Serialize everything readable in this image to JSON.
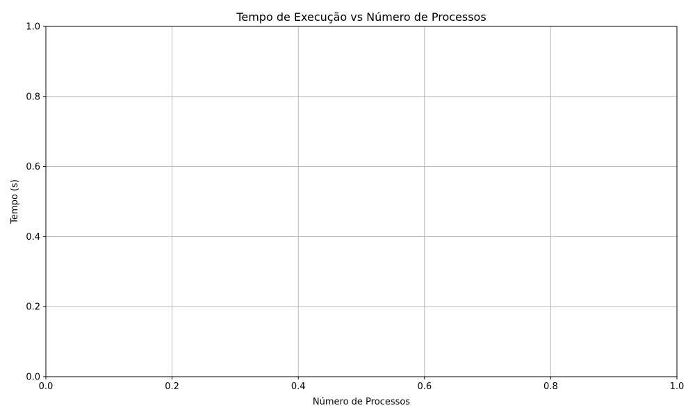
{
  "chart_data": {
    "type": "line",
    "title": "Tempo de Execução vs Número de Processos",
    "xlabel": "Número de Processos",
    "ylabel": "Tempo (s)",
    "xlim": [
      0.0,
      1.0
    ],
    "ylim": [
      0.0,
      1.0
    ],
    "x_ticks": [
      "0.0",
      "0.2",
      "0.4",
      "0.6",
      "0.8",
      "1.0"
    ],
    "y_ticks": [
      "0.0",
      "0.2",
      "0.4",
      "0.6",
      "0.8",
      "1.0"
    ],
    "grid": true,
    "legend": "none",
    "series": [],
    "colors": {
      "grid": "#b0b0b0",
      "axes": "#000000",
      "background": "#ffffff"
    }
  }
}
